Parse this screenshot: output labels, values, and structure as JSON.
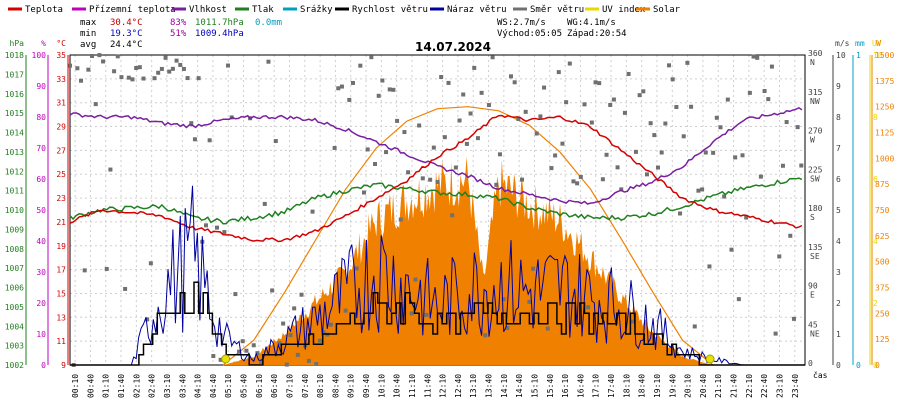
{
  "chart_data": {
    "type": "line",
    "title": "14.07.2024",
    "x_axis_label": "čas",
    "x_ticks": [
      "00:10",
      "00:40",
      "01:10",
      "01:40",
      "02:10",
      "02:40",
      "03:10",
      "03:40",
      "04:10",
      "04:40",
      "05:10",
      "05:40",
      "06:10",
      "06:40",
      "07:10",
      "07:40",
      "08:10",
      "08:40",
      "09:10",
      "09:40",
      "10:10",
      "10:40",
      "11:10",
      "11:40",
      "12:10",
      "12:40",
      "13:10",
      "13:40",
      "14:10",
      "14:40",
      "15:10",
      "15:40",
      "16:10",
      "16:40",
      "17:10",
      "17:40",
      "18:10",
      "18:40",
      "19:10",
      "19:40",
      "20:10",
      "20:40",
      "21:10",
      "21:40",
      "22:10",
      "22:40",
      "23:10",
      "23:40"
    ],
    "legend": [
      {
        "name": "Teplota",
        "color": "#d40000"
      },
      {
        "name": "Přízemní teplota",
        "color": "#c000c0"
      },
      {
        "name": "Vlhkost",
        "color": "#7a1fa0"
      },
      {
        "name": "Tlak",
        "color": "#208020"
      },
      {
        "name": "Srážky",
        "color": "#00a0c0"
      },
      {
        "name": "Rychlost větru",
        "color": "#000000"
      },
      {
        "name": "Náraz větru",
        "color": "#0000a0"
      },
      {
        "name": "Směr větru",
        "color": "#707070"
      },
      {
        "name": "UV index",
        "color": "#e8d800"
      },
      {
        "name": "Solar",
        "color": "#f08000"
      }
    ],
    "stats": {
      "max": {
        "label": "max",
        "temp": "30.4°C",
        "hum": "83%",
        "press": "1011.7hPa",
        "rain": "0.0mm"
      },
      "min": {
        "label": "min",
        "temp": "19.3°C",
        "hum": "51%",
        "press": "1009.4hPa"
      },
      "avg": {
        "label": "avg",
        "temp": "24.4°C"
      },
      "ws": "WS:2.7m/s",
      "wg": "WG:4.1m/s",
      "sunrise": "Východ:05:05",
      "sunset": "Západ:20:54"
    },
    "axes": {
      "hpa": {
        "unit": "hPa",
        "color": "#208020",
        "ticks": [
          "1018",
          "1017",
          "1016",
          "1015",
          "1014",
          "1013",
          "1012",
          "1011",
          "1010",
          "1009",
          "1008",
          "1007",
          "1006",
          "1005",
          "1004",
          "1003",
          "1002"
        ],
        "range": [
          1002,
          1018
        ]
      },
      "pct": {
        "unit": "%",
        "color": "#c000c0",
        "ticks": [
          "100",
          "90",
          "80",
          "70",
          "60",
          "50",
          "40",
          "30",
          "20",
          "10",
          "0"
        ],
        "range": [
          0,
          100
        ]
      },
      "temp": {
        "unit": "°C",
        "color": "#d40000",
        "ticks": [
          "35",
          "33",
          "31",
          "29",
          "27",
          "25",
          "23",
          "21",
          "19",
          "17",
          "15",
          "13",
          "11",
          "9"
        ],
        "range": [
          9,
          35
        ]
      },
      "dir": {
        "color": "#707070",
        "ticks": [
          {
            "v": "360",
            "d": "N"
          },
          {
            "v": "315",
            "d": "NW"
          },
          {
            "v": "270",
            "d": "W"
          },
          {
            "v": "225",
            "d": "SW"
          },
          {
            "v": "180",
            "d": "S"
          },
          {
            "v": "135",
            "d": "SE"
          },
          {
            "v": "90",
            "d": "E"
          },
          {
            "v": "45",
            "d": "NE"
          },
          {
            "v": "0",
            "d": ""
          }
        ],
        "range": [
          0,
          360
        ]
      },
      "ms": {
        "unit": "m/s",
        "color": "#404040",
        "ticks": [
          "10",
          "9",
          "8",
          "7",
          "6",
          "5",
          "4",
          "3",
          "2",
          "1",
          "0"
        ],
        "range": [
          0,
          10
        ]
      },
      "mm": {
        "unit": "mm",
        "color": "#00a0c0",
        "ticks": [
          "1",
          "0"
        ],
        "range": [
          0,
          1
        ]
      },
      "uv": {
        "unit": "UV",
        "color": "#e8d800",
        "ticks": [
          "10",
          "8",
          "6",
          "4",
          "2",
          "0"
        ],
        "range": [
          0,
          10
        ]
      },
      "solar": {
        "unit": "W",
        "color": "#f08000",
        "ticks": [
          "1500",
          "1375",
          "1250",
          "1125",
          "1000",
          "875",
          "750",
          "625",
          "500",
          "375",
          "250",
          "125",
          "0"
        ],
        "range": [
          0,
          1500
        ]
      }
    },
    "series": {
      "temperature": {
        "x": [
          0,
          1,
          2,
          3,
          4,
          5,
          6,
          7,
          8,
          9,
          10,
          11,
          12,
          13,
          14,
          15,
          16,
          17,
          18,
          19,
          20,
          21,
          22,
          23,
          24
        ],
        "y": [
          21.0,
          22.0,
          21.8,
          21.5,
          20.5,
          20.0,
          19.5,
          19.5,
          20.2,
          21.5,
          23.0,
          24.5,
          26.5,
          28.0,
          30.0,
          29.5,
          29.8,
          29.0,
          27.0,
          25.0,
          23.0,
          22.0,
          21.5,
          21.0,
          20.5
        ]
      },
      "humidity": {
        "x": [
          0,
          1,
          2,
          3,
          4,
          5,
          6,
          7,
          8,
          9,
          10,
          11,
          12,
          13,
          14,
          15,
          16,
          17,
          18,
          19,
          20,
          21,
          22,
          23,
          24
        ],
        "y": [
          81,
          80,
          80,
          78,
          77,
          79,
          80,
          80,
          79,
          76,
          72,
          68,
          64,
          61,
          57,
          55,
          53,
          52,
          56,
          59,
          64,
          72,
          79,
          81,
          83
        ]
      },
      "pressure": {
        "x": [
          0,
          1,
          2,
          3,
          4,
          5,
          6,
          7,
          8,
          9,
          10,
          11,
          12,
          13,
          14,
          15,
          16,
          17,
          18,
          19,
          20,
          21,
          22,
          23,
          24
        ],
        "y": [
          1009.6,
          1010.0,
          1010.1,
          1010.2,
          1009.6,
          1009.4,
          1009.6,
          1009.9,
          1010.6,
          1011.0,
          1011.3,
          1011.1,
          1010.9,
          1010.8,
          1010.6,
          1010.1,
          1009.8,
          1009.6,
          1009.6,
          1009.8,
          1010.2,
          1010.7,
          1011.1,
          1011.4,
          1011.7
        ]
      },
      "wind_speed": {
        "x": [
          0,
          1,
          2,
          3,
          4,
          5,
          6,
          7,
          8,
          9,
          10,
          11,
          12,
          13,
          14,
          15,
          16,
          17,
          18,
          19,
          20,
          21,
          22,
          23,
          24
        ],
        "y": [
          0,
          0,
          0,
          1.5,
          2.5,
          0.5,
          0,
          0.5,
          0.7,
          1.4,
          1.8,
          1.9,
          1.2,
          1.5,
          1.8,
          1.7,
          1.6,
          1.5,
          1.4,
          0.9,
          0.3,
          0,
          0,
          0,
          0
        ]
      },
      "wind_gust": {
        "x": [
          0,
          1,
          2,
          3,
          4,
          5,
          6,
          7,
          8,
          9,
          10,
          11,
          12,
          13,
          14,
          15,
          16,
          17,
          18,
          19,
          20,
          21,
          22,
          23,
          24
        ],
        "y": [
          0,
          0,
          0,
          2.6,
          3.9,
          1.0,
          0.2,
          0.9,
          1.6,
          2.5,
          3.4,
          2.8,
          2.1,
          2.7,
          2.9,
          2.6,
          2.8,
          2.4,
          2.1,
          1.5,
          0.5,
          0.2,
          0,
          0,
          0
        ]
      },
      "solar": {
        "x": [
          5,
          6,
          7,
          8,
          9,
          10,
          11,
          12,
          13,
          13.5,
          14,
          15,
          16,
          17,
          18,
          19,
          20,
          21
        ],
        "y": [
          0,
          40,
          150,
          300,
          450,
          700,
          800,
          870,
          900,
          400,
          880,
          780,
          700,
          520,
          330,
          160,
          40,
          0
        ]
      },
      "solar_max": {
        "x": [
          5,
          6,
          7,
          8,
          9,
          10,
          11,
          12,
          13,
          14,
          15,
          16,
          17,
          18,
          19,
          20,
          21
        ],
        "y": [
          0,
          120,
          350,
          600,
          850,
          1050,
          1180,
          1240,
          1250,
          1230,
          1160,
          1030,
          850,
          610,
          360,
          120,
          0
        ]
      }
    }
  }
}
